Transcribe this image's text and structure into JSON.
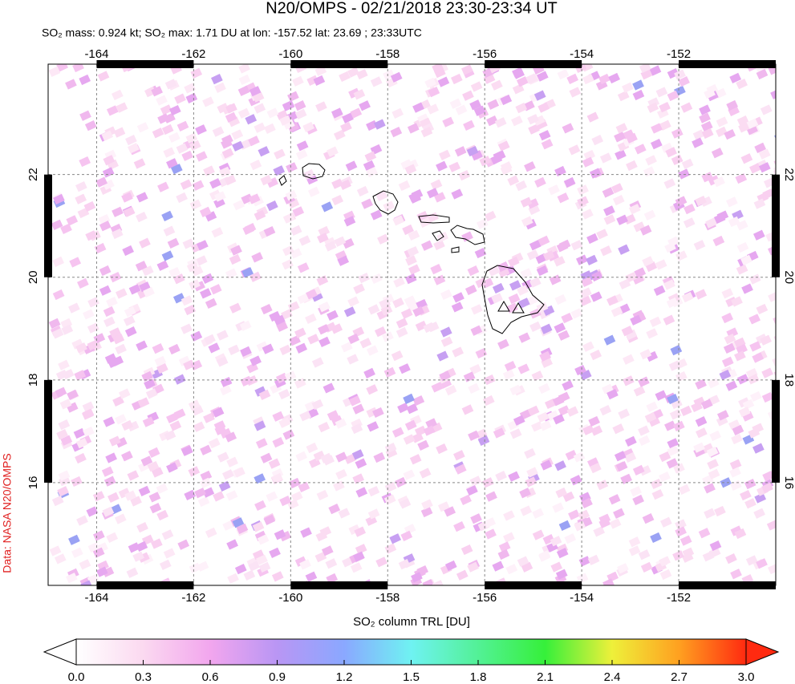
{
  "map": {
    "title": "N20/OMPS - 02/21/2018 23:30-23:34 UT",
    "subtitle": "SO₂ mass: 0.924 kt; SO₂ max: 1.71 DU at lon: -157.52 lat: 23.69 ; 23:33UTC",
    "xlim": [
      -165,
      -150
    ],
    "ylim": [
      14,
      24.15
    ],
    "xticks": [
      -164,
      -162,
      -160,
      -158,
      -156,
      -154,
      -152
    ],
    "yticks": [
      16,
      18,
      20,
      22
    ],
    "grid": true,
    "colorbar": {
      "label": "SO₂ column TRL [DU]",
      "lim": [
        0,
        3
      ],
      "ticks": [
        {
          "value": 0,
          "label": "0.0"
        },
        0.3,
        0.6,
        0.9,
        1.2,
        1.5,
        1.8,
        2.1,
        2.4,
        2.7,
        {
          "value": 3,
          "label": "3.0"
        }
      ]
    },
    "credit": "Data: NASA N20/OMPS"
  }
}
